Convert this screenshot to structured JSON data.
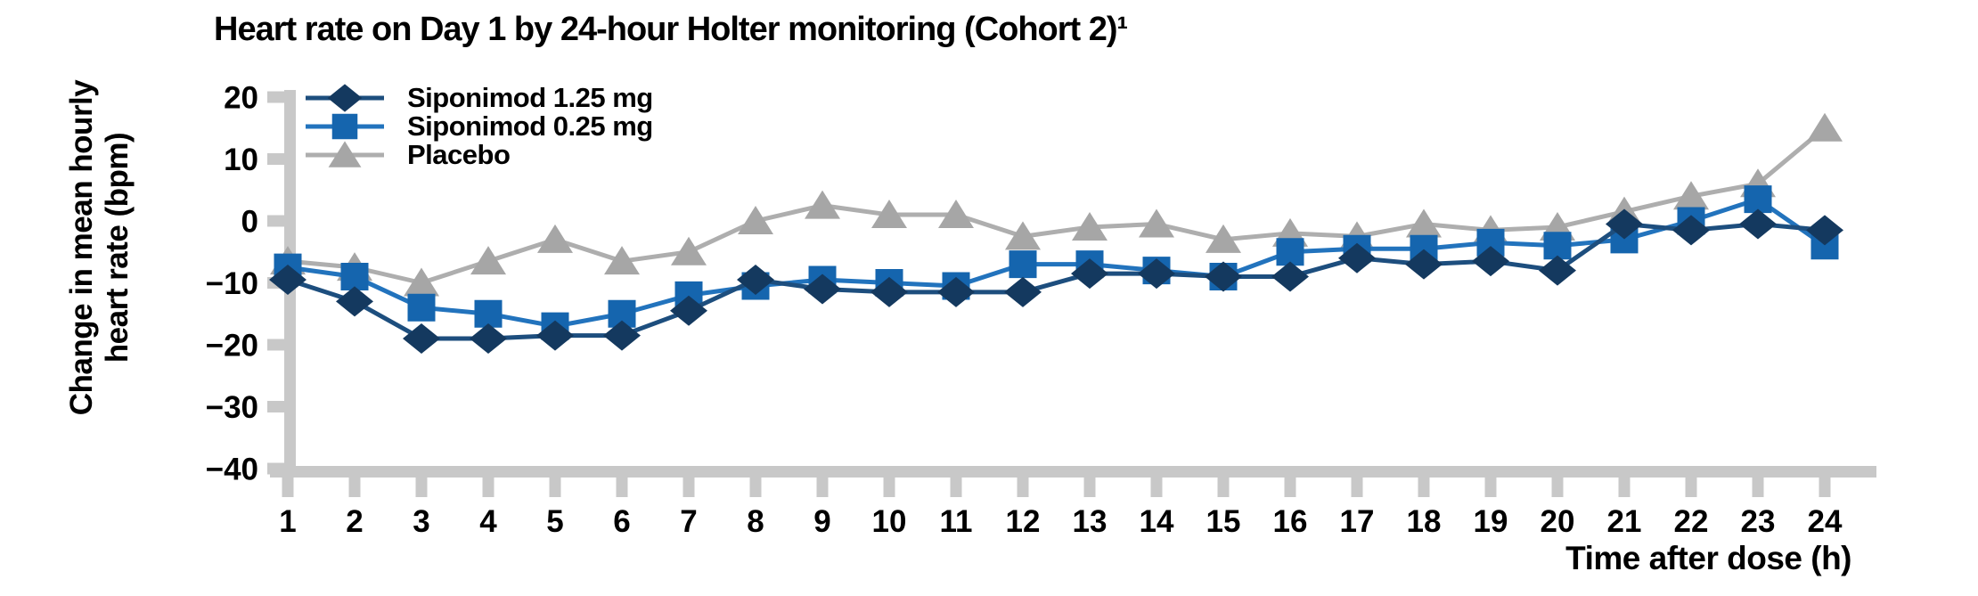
{
  "page": {
    "background": "#ffffff"
  },
  "header": {
    "title": "Heart rate on Day 1 by 24-hour Holter monitoring (Cohort 2)¹"
  },
  "axes": {
    "x_label": "Time after dose (h)",
    "y_label_line1": "Change in mean hourly",
    "y_label_line2": "heart rate (bpm)"
  },
  "colors": {
    "axis": "#c8c8c8",
    "text": "#000000"
  },
  "chart_data": {
    "type": "line",
    "title": "Heart rate on Day 1 by 24-hour Holter monitoring (Cohort 2)¹",
    "xlabel": "Time after dose (h)",
    "ylabel": "Change in mean hourly heart rate (bpm)",
    "x": [
      1,
      2,
      3,
      4,
      5,
      6,
      7,
      8,
      9,
      10,
      11,
      12,
      13,
      14,
      15,
      16,
      17,
      18,
      19,
      20,
      21,
      22,
      23,
      24
    ],
    "ylim": [
      -40,
      20
    ],
    "yticks": [
      20,
      10,
      0,
      -10,
      -20,
      -30,
      -40
    ],
    "grid": false,
    "legend_position": "top-left",
    "series": [
      {
        "name": "Siponimod 1.25 mg",
        "marker": "diamond",
        "color": "#14395f",
        "line_color": "#1d4e7e",
        "values": [
          -9.5,
          -13,
          -19,
          -19,
          -18.5,
          -18.5,
          -14.5,
          -9.5,
          -11,
          -11.5,
          -11.5,
          -11.5,
          -8.5,
          -8.5,
          -9,
          -9,
          -6,
          -7,
          -6.5,
          -8,
          -0.5,
          -1.5,
          -0.5,
          -1.5
        ]
      },
      {
        "name": "Siponimod 0.25 mg",
        "marker": "square",
        "color": "#1565ae",
        "line_color": "#2273bd",
        "values": [
          -7.5,
          -9,
          -14,
          -15,
          -17,
          -15,
          -12,
          -10.5,
          -9.5,
          -10,
          -10.5,
          -7,
          -7,
          -8,
          -9,
          -5,
          -4.5,
          -4.5,
          -3.5,
          -4,
          -3,
          0,
          3.5,
          -4
        ]
      },
      {
        "name": "Placebo",
        "marker": "triangle",
        "color": "#a6a6a6",
        "line_color": "#aeaeae",
        "values": [
          -6.5,
          -7.5,
          -10,
          -6.5,
          -3,
          -6.5,
          -5,
          0,
          2.5,
          1,
          1,
          -2.5,
          -1,
          -0.5,
          -3,
          -2,
          -2.5,
          -0.5,
          -1.5,
          -1,
          1.5,
          4,
          6,
          15
        ]
      }
    ]
  }
}
